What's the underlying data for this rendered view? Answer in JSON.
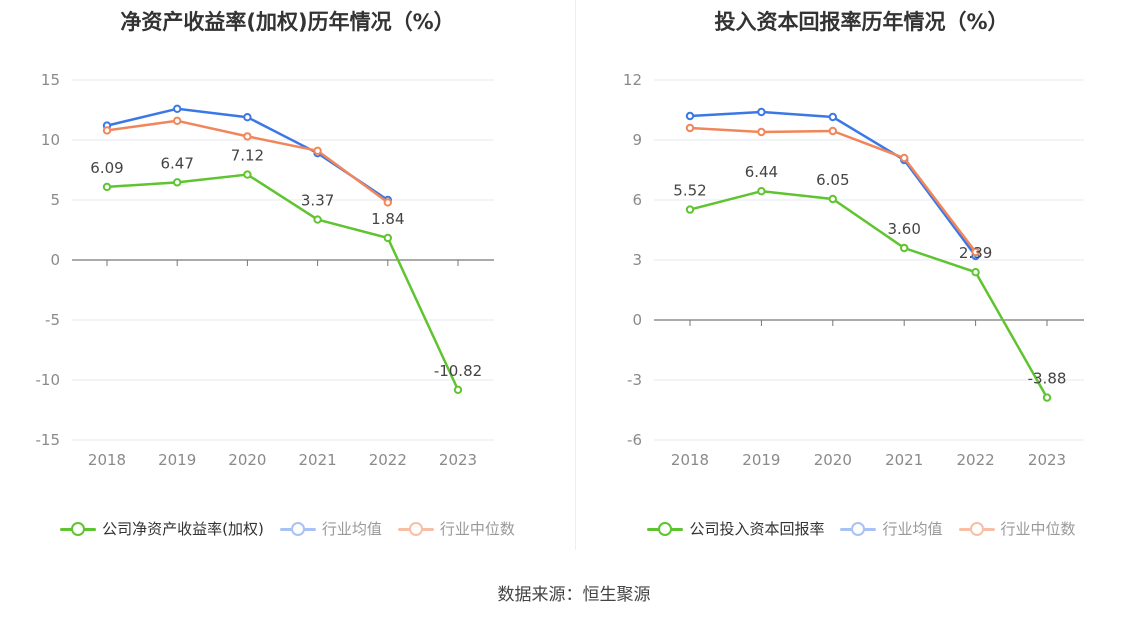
{
  "source_label": "数据来源：恒生聚源",
  "colors": {
    "company": "#5ec42f",
    "industry_avg": "#3b78e7",
    "industry_median": "#f0865a",
    "grid": "#e6e8f2",
    "axis": "#666666",
    "tick_text": "#8a8a8a"
  },
  "chart_data": [
    {
      "type": "line",
      "title": "净资产收益率(加权)历年情况（%）",
      "categories": [
        "2018",
        "2019",
        "2020",
        "2021",
        "2022",
        "2023"
      ],
      "ylim": [
        -15,
        15
      ],
      "yticks": [
        15,
        10,
        5,
        0,
        -5,
        -10,
        -15
      ],
      "ytick_labels": [
        "15",
        "10",
        "5",
        "0",
        "-5",
        "-10",
        "-15"
      ],
      "grid": true,
      "legend_position": "bottom",
      "series": [
        {
          "name": "公司净资产收益率(加权)",
          "values": [
            6.09,
            6.47,
            7.12,
            3.37,
            1.84,
            -10.82
          ],
          "labels": [
            "6.09",
            "6.47",
            "7.12",
            "3.37",
            "1.84",
            "-10.82"
          ],
          "color_key": "company",
          "active": true
        },
        {
          "name": "行业均值",
          "values": [
            11.2,
            12.6,
            11.9,
            8.9,
            5.0,
            null
          ],
          "color_key": "industry_avg",
          "active": false
        },
        {
          "name": "行业中位数",
          "values": [
            10.8,
            11.6,
            10.3,
            9.1,
            4.8,
            null
          ],
          "color_key": "industry_median",
          "active": false
        }
      ]
    },
    {
      "type": "line",
      "title": "投入资本回报率历年情况（%）",
      "categories": [
        "2018",
        "2019",
        "2020",
        "2021",
        "2022",
        "2023"
      ],
      "ylim": [
        -6,
        12
      ],
      "yticks": [
        12,
        9,
        6,
        3,
        0,
        -3,
        -6
      ],
      "ytick_labels": [
        "12",
        "9",
        "6",
        "3",
        "0",
        "-3",
        "-6"
      ],
      "grid": true,
      "legend_position": "bottom",
      "series": [
        {
          "name": "公司投入资本回报率",
          "values": [
            5.52,
            6.44,
            6.05,
            3.6,
            2.39,
            -3.88
          ],
          "labels": [
            "5.52",
            "6.44",
            "6.05",
            "3.60",
            "2.39",
            "-3.88"
          ],
          "color_key": "company",
          "active": true
        },
        {
          "name": "行业均值",
          "values": [
            10.2,
            10.4,
            10.15,
            8.0,
            3.2,
            null
          ],
          "color_key": "industry_avg",
          "active": false
        },
        {
          "name": "行业中位数",
          "values": [
            9.6,
            9.4,
            9.45,
            8.1,
            3.4,
            null
          ],
          "color_key": "industry_median",
          "active": false
        }
      ]
    }
  ]
}
